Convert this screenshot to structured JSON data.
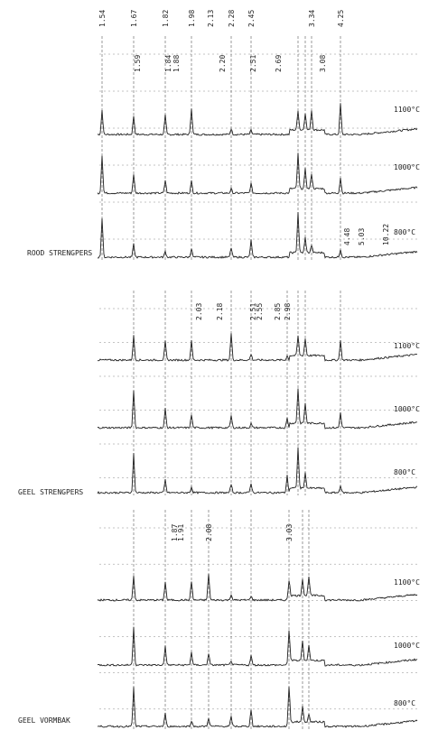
{
  "panels": [
    {
      "name": "ROOD STRENGPERS",
      "peak_labels": [
        "1.54",
        "1.67",
        "1.82",
        "1.98",
        "2.13",
        "2.28",
        "2.45",
        "3.34",
        "4.25"
      ],
      "peak_labels_lower": [
        "1.59",
        "1.84",
        "1.88",
        "2.20",
        "2.51",
        "2.69",
        "3.08"
      ],
      "low_angle_labels": [
        "4.48",
        "5.03",
        "10.22"
      ],
      "temperatures": [
        "1100°C",
        "1000°C",
        "800°C"
      ]
    },
    {
      "name": "GEEL STRENGPERS",
      "peak_labels": [
        "2.03",
        "2.18",
        "2.51",
        "2.55",
        "2.85",
        "2.98"
      ],
      "temperatures": [
        "1100°C",
        "1000°C",
        "800°C"
      ]
    },
    {
      "name": "GEEL VORMBAK",
      "peak_labels": [
        "1.87",
        "1.91",
        "2.08",
        "3.03"
      ],
      "temperatures": [
        "1100°C",
        "1000°C",
        "800°C"
      ]
    }
  ]
}
